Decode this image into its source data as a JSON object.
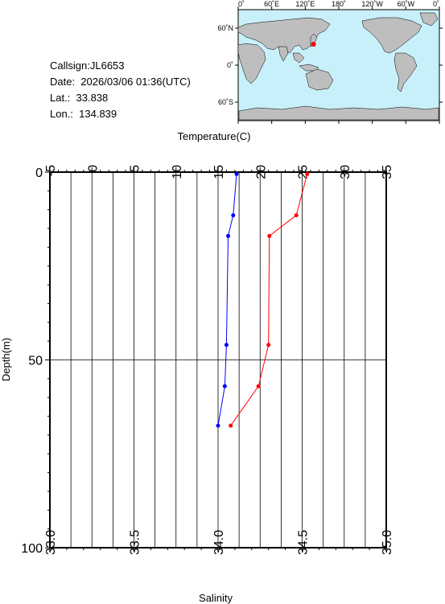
{
  "header": {
    "callsign": "Callsign:JL6653",
    "date": "Date:  2026/03/06 01:36(UTC)",
    "lat": "Lat.:  33.838",
    "lon": "Lon.:  134.839"
  },
  "map": {
    "top_labels": [
      "0˚",
      "60˚E",
      "120˚E",
      "180˚",
      "120˚W",
      "60˚W",
      "0˚"
    ],
    "left_labels": [
      "60˚N",
      "0˚",
      "60˚S"
    ],
    "ocean_color": "#c8f0fa",
    "land_color": "#bebebe",
    "marker_color": "#ff0000",
    "station": {
      "lat": 33.838,
      "lon": 134.839
    }
  },
  "chart_data": {
    "type": "line",
    "title": "",
    "temperature_axis": {
      "label": "Temperature(C)",
      "range": [
        -5,
        35
      ],
      "ticks": [
        -5,
        0,
        5,
        10,
        15,
        20,
        25,
        30,
        35
      ]
    },
    "salinity_axis": {
      "label": "Salinity",
      "range": [
        33.0,
        35.0
      ],
      "ticks": [
        "33.0",
        "33.5",
        "34.0",
        "34.5",
        "35.0"
      ]
    },
    "depth_axis": {
      "label": "Depth(m)",
      "range": [
        0,
        100
      ],
      "ticks": [
        0,
        50,
        100
      ],
      "inverted": true
    },
    "series": [
      {
        "measure": "temperature",
        "color": "#ff0000",
        "points": [
          {
            "depth": 0.5,
            "value": 25.6
          },
          {
            "depth": 11.5,
            "value": 24.3
          },
          {
            "depth": 17,
            "value": 21.1
          },
          {
            "depth": 46,
            "value": 21.0
          },
          {
            "depth": 57,
            "value": 19.8
          },
          {
            "depth": 67.5,
            "value": 16.5
          }
        ]
      },
      {
        "measure": "salinity",
        "color": "#0000ff",
        "points": [
          {
            "depth": 0.5,
            "value": 34.11
          },
          {
            "depth": 11.5,
            "value": 34.09
          },
          {
            "depth": 17,
            "value": 34.06
          },
          {
            "depth": 46,
            "value": 34.05
          },
          {
            "depth": 57,
            "value": 34.04
          },
          {
            "depth": 67.5,
            "value": 34.0
          }
        ]
      }
    ]
  }
}
